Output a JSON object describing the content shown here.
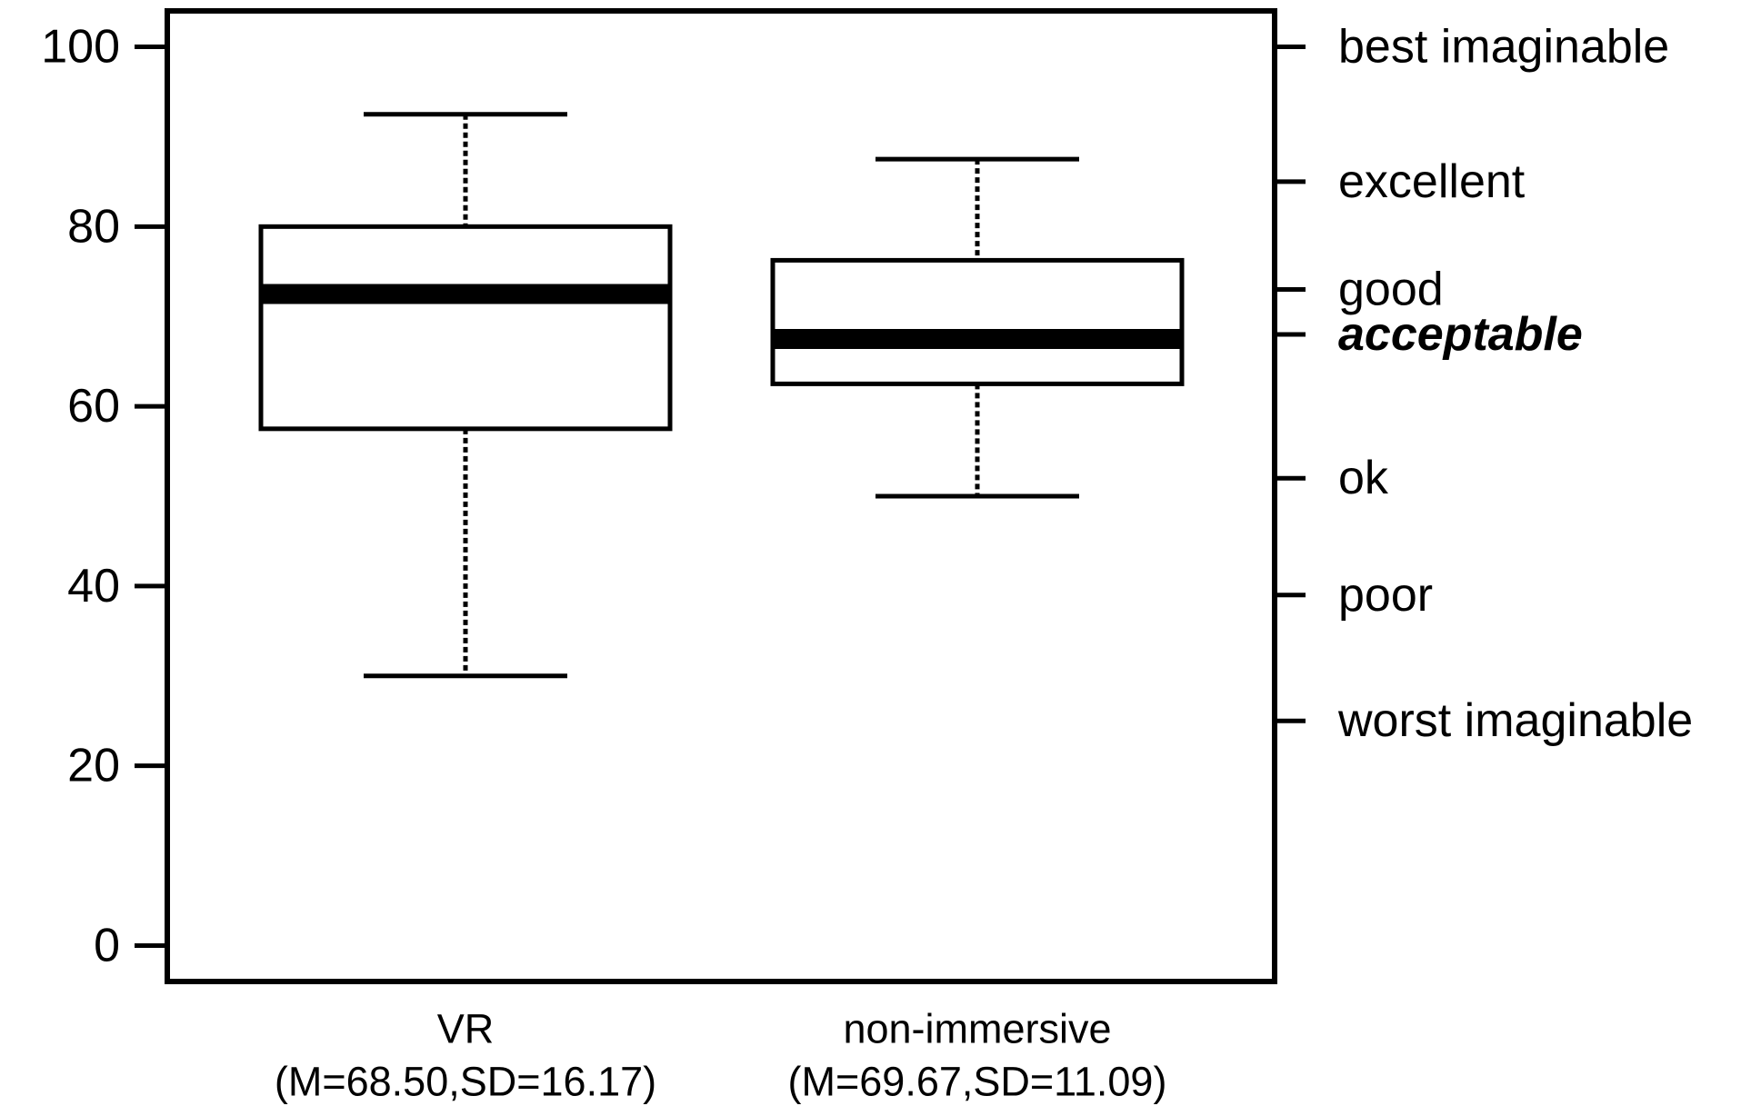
{
  "chart_data": {
    "type": "boxplot",
    "title": "",
    "xlabel": "",
    "ylabel": "",
    "ylim": [
      -4,
      104
    ],
    "y_ticks": [
      0,
      20,
      40,
      60,
      80,
      100
    ],
    "y_tick_labels": [
      "0",
      "20",
      "40",
      "60",
      "80",
      "100"
    ],
    "categories": [
      {
        "label": "VR",
        "stats_label": "(M=68.50,SD=16.17)"
      },
      {
        "label": "non-immersive",
        "stats_label": "(M=69.67,SD=11.09)"
      }
    ],
    "series": [
      {
        "whisker_low": 30.0,
        "q1": 57.5,
        "median": 72.5,
        "q3": 80.0,
        "whisker_high": 92.5
      },
      {
        "whisker_low": 50.0,
        "q1": 62.5,
        "median": 67.5,
        "q3": 76.25,
        "whisker_high": 87.5
      }
    ],
    "secondary_axis": {
      "side": "right",
      "ticks": [
        {
          "value": 100,
          "label": "best imaginable",
          "emphasis": false
        },
        {
          "value": 85.0,
          "label": "excellent",
          "emphasis": false
        },
        {
          "value": 73.0,
          "label": "good",
          "emphasis": false
        },
        {
          "value": 68.0,
          "label": "acceptable",
          "emphasis": true
        },
        {
          "value": 52.0,
          "label": "ok",
          "emphasis": false
        },
        {
          "value": 39.0,
          "label": "poor",
          "emphasis": false
        },
        {
          "value": 25.0,
          "label": "worst imaginable",
          "emphasis": false
        }
      ]
    },
    "grid": false,
    "legend": "none"
  }
}
